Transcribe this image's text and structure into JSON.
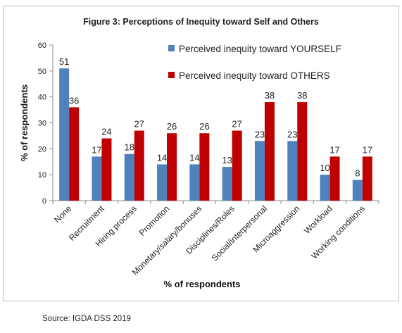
{
  "chart_data": {
    "type": "bar",
    "title": "Figure 3: Perceptions of Inequity toward Self and Others",
    "xlabel": "% of respondents",
    "ylabel": "% of respondents",
    "ylim": [
      0,
      60
    ],
    "yticks": [
      0,
      10,
      20,
      30,
      40,
      50,
      60
    ],
    "grid": false,
    "legend_position": "top-right",
    "categories": [
      "None",
      "Recruitment",
      "Hiring process",
      "Promotion",
      "Monetary/salary/bonuses",
      "Disciplines/Roles",
      "Social/interpersonal",
      "Microaggression",
      "Workload",
      "Working conditions"
    ],
    "series": [
      {
        "name": "Perceived inequity toward YOURSELF",
        "color": "#4f81bd",
        "values": [
          51,
          17,
          18,
          14,
          14,
          13,
          23,
          23,
          10,
          8
        ]
      },
      {
        "name": "Perceived inequity toward OTHERS",
        "color": "#c00000",
        "values": [
          36,
          24,
          27,
          26,
          26,
          27,
          38,
          38,
          17,
          17
        ]
      }
    ]
  },
  "source": "Source: IGDA DSS 2019"
}
